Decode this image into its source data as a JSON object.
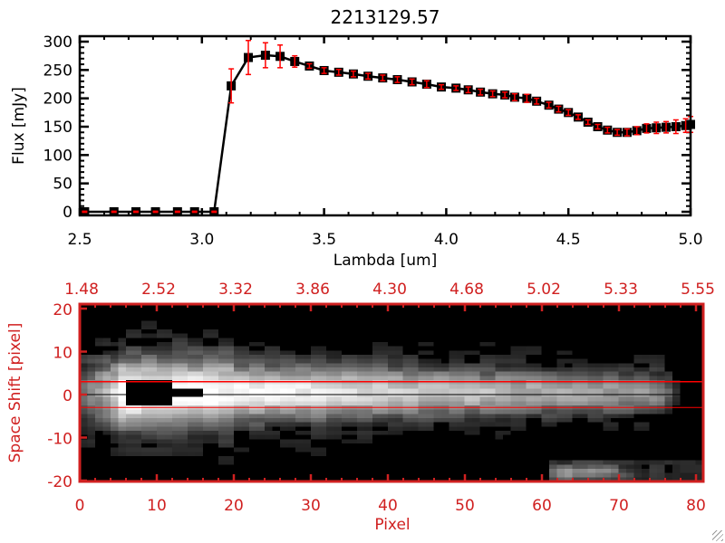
{
  "chart_data": [
    {
      "type": "line",
      "title": "2213129.57",
      "xlabel": "Lambda [um]",
      "ylabel": "Flux [mJy]",
      "xlim": [
        2.5,
        5.0
      ],
      "ylim": [
        -10,
        310
      ],
      "xticks": [
        "2.5",
        "3.0",
        "3.5",
        "4.0",
        "4.5",
        "5.0"
      ],
      "xtick_values": [
        2.5,
        3.0,
        3.5,
        4.0,
        4.5,
        5.0
      ],
      "yticks": [
        "0",
        "50",
        "100",
        "150",
        "200",
        "250",
        "300"
      ],
      "ytick_values": [
        0,
        50,
        100,
        150,
        200,
        250,
        300
      ],
      "grid": false,
      "series": [
        {
          "name": "flux",
          "color": "#000000",
          "error_color": "#ff0000",
          "x": [
            2.52,
            2.64,
            2.73,
            2.81,
            2.9,
            2.97,
            3.05,
            3.12,
            3.19,
            3.26,
            3.32,
            3.38,
            3.44,
            3.5,
            3.56,
            3.62,
            3.68,
            3.74,
            3.8,
            3.86,
            3.92,
            3.98,
            4.04,
            4.09,
            4.14,
            4.19,
            4.24,
            4.28,
            4.33,
            4.37,
            4.42,
            4.46,
            4.5,
            4.54,
            4.58,
            4.62,
            4.66,
            4.7,
            4.74,
            4.78,
            4.82,
            4.86,
            4.9,
            4.94,
            4.98,
            5.0
          ],
          "y": [
            0,
            0,
            0,
            0,
            0,
            0,
            0,
            222,
            272,
            276,
            274,
            265,
            257,
            249,
            246,
            243,
            239,
            236,
            233,
            229,
            225,
            220,
            218,
            215,
            211,
            208,
            206,
            202,
            200,
            195,
            188,
            181,
            175,
            167,
            158,
            150,
            144,
            140,
            140,
            143,
            147,
            148,
            149,
            150,
            152,
            154
          ],
          "yerr": [
            1,
            1,
            1,
            1,
            1,
            1,
            1,
            30,
            30,
            22,
            20,
            10,
            4,
            5,
            5,
            5,
            5,
            5,
            5,
            5,
            6,
            4,
            4,
            5,
            5,
            5,
            5,
            6,
            7,
            5,
            5,
            5,
            5,
            4,
            4,
            4,
            5,
            5,
            6,
            7,
            8,
            10,
            10,
            12,
            12,
            14
          ]
        }
      ]
    },
    {
      "type": "heatmap",
      "xlabel": "Pixel",
      "ylabel": "Space Shift [pixel]",
      "xlim": [
        0,
        81
      ],
      "ylim": [
        -21,
        21
      ],
      "xticks": [
        "0",
        "10",
        "20",
        "30",
        "40",
        "50",
        "60",
        "70",
        "80"
      ],
      "xtick_values": [
        0,
        10,
        20,
        30,
        40,
        50,
        60,
        70,
        80
      ],
      "top_xticks": [
        "1.48",
        "2.52",
        "3.32",
        "3.86",
        "4.30",
        "4.68",
        "5.02",
        "5.33",
        "5.55"
      ],
      "yticks": [
        "20",
        "10",
        "0",
        "-10",
        "-20"
      ],
      "ytick_values": [
        20,
        10,
        0,
        -10,
        -20
      ],
      "extraction_aperture": [
        -3,
        3
      ],
      "trace_center": 0,
      "axis_color": "#d02020",
      "aperture_color": "#ff0000"
    }
  ]
}
